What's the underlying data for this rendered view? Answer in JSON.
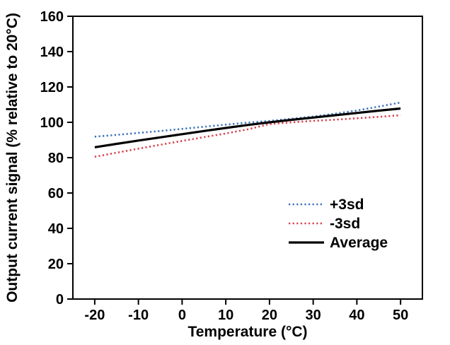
{
  "chart_data": {
    "type": "line",
    "title": "",
    "xlabel": "Temperature (°C)",
    "ylabel": "Output current signal (% relative to 20°C)",
    "xlim": [
      -25,
      55
    ],
    "ylim": [
      0,
      160
    ],
    "x_ticks": [
      -20,
      -10,
      0,
      10,
      20,
      30,
      40,
      50
    ],
    "y_ticks": [
      0,
      20,
      40,
      60,
      80,
      100,
      120,
      140,
      160
    ],
    "grid": false,
    "legend_position": "inside-right",
    "x": [
      -20,
      -15,
      -10,
      -5,
      0,
      5,
      10,
      15,
      20,
      25,
      30,
      35,
      40,
      45,
      50
    ],
    "series": [
      {
        "name": "+3sd",
        "color": "#3d73b8",
        "style": "dotted",
        "values": [
          91.9,
          92.9,
          94.0,
          95.1,
          96.3,
          97.5,
          98.7,
          99.8,
          100.8,
          102.0,
          103.3,
          104.9,
          106.7,
          108.9,
          111.2
        ]
      },
      {
        "name": "-3sd",
        "color": "#d5414b",
        "style": "dotted",
        "values": [
          80.5,
          82.8,
          85.1,
          87.3,
          89.5,
          91.6,
          93.7,
          96.0,
          99.0,
          100.0,
          100.8,
          101.5,
          102.3,
          103.1,
          104.0
        ]
      },
      {
        "name": "Average",
        "color": "#000000",
        "style": "solid",
        "values": [
          85.9,
          87.8,
          89.7,
          91.5,
          93.3,
          95.1,
          96.8,
          98.5,
          100.0,
          101.4,
          102.7,
          104.0,
          105.3,
          106.6,
          107.8
        ]
      }
    ]
  },
  "frame_color": "#000000",
  "background_color": "#ffffff"
}
